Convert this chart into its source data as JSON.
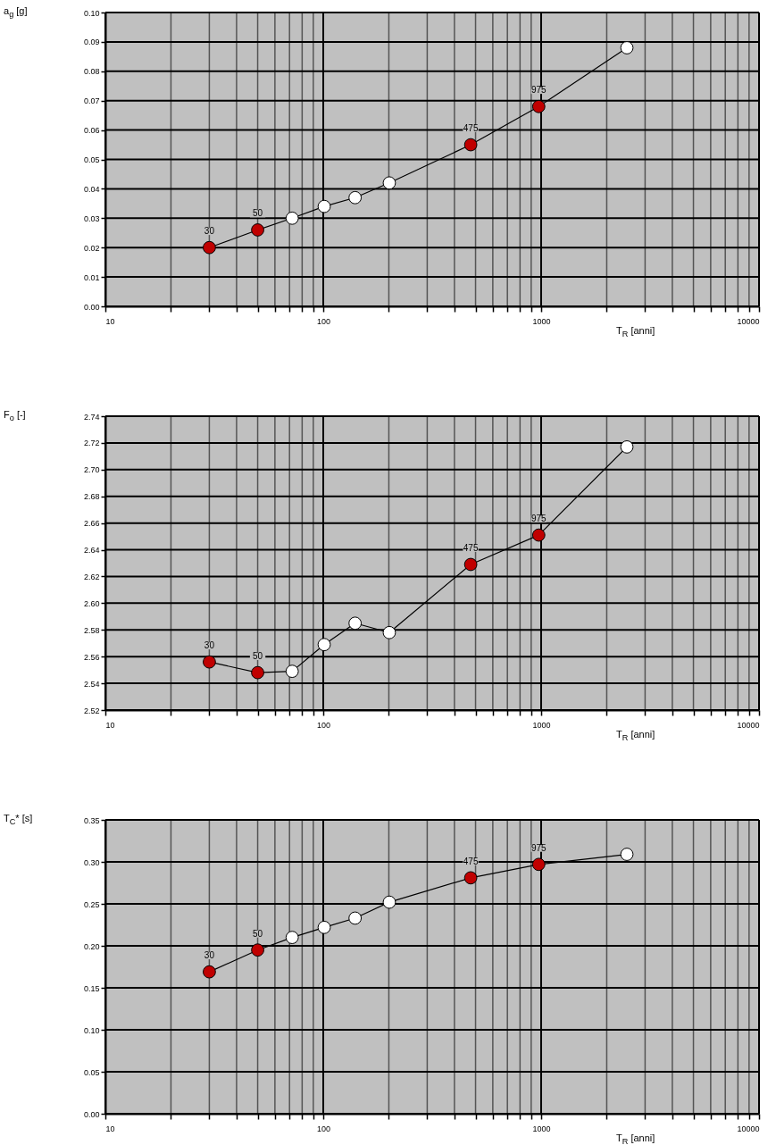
{
  "chart_data": [
    {
      "type": "line",
      "ylabel": "a$_{g}$ [g]",
      "xlabel": "T$_{R}$ [anni]",
      "log": "x",
      "grid": true,
      "xlim": [
        10,
        10000
      ],
      "annotations": [
        {
          "text": "30",
          "x": 30,
          "y": 0.02
        },
        {
          "text": "50",
          "x": 50,
          "y": 0.026
        },
        {
          "text": "475",
          "x": 475,
          "y": 0.055
        },
        {
          "text": "975",
          "x": 975,
          "y": 0.068
        }
      ],
      "xticks": [
        10,
        {
          "value": 20,
          "label": null
        },
        {
          "value": 30,
          "label": null
        },
        {
          "value": 40,
          "label": null
        },
        {
          "value": 50,
          "label": null
        },
        {
          "value": 60,
          "label": null
        },
        {
          "value": 70,
          "label": null
        },
        {
          "value": 80,
          "label": null
        },
        {
          "value": 90,
          "label": null
        },
        100,
        {
          "value": 200,
          "label": null
        },
        {
          "value": 300,
          "label": null
        },
        {
          "value": 400,
          "label": null
        },
        {
          "value": 500,
          "label": null
        },
        {
          "value": 600,
          "label": null
        },
        {
          "value": 700,
          "label": null
        },
        {
          "value": 800,
          "label": null
        },
        {
          "value": 900,
          "label": null
        },
        1000,
        {
          "value": 2000,
          "label": null
        },
        {
          "value": 3000,
          "label": null
        },
        {
          "value": 4000,
          "label": null
        },
        {
          "value": 5000,
          "label": null
        },
        {
          "value": 6000,
          "label": null
        },
        {
          "value": 7000,
          "label": null
        },
        {
          "value": 8000,
          "label": null
        },
        {
          "value": 9000,
          "label": null
        },
        10000
      ],
      "ylim": [
        0,
        0.1
      ],
      "yticks": [
        {
          "value": 0,
          "label": "0.00"
        },
        0.01,
        0.02,
        0.03,
        0.04,
        0.05,
        0.06,
        0.07,
        0.08,
        0.09,
        {
          "value": 0.1,
          "label": "0.10"
        }
      ],
      "series": [
        {
          "type": "line",
          "color": "#000000",
          "marker": "circle",
          "line_style": "solid",
          "x": [
            30,
            50,
            72,
            101,
            140,
            201,
            475,
            975,
            2475
          ],
          "values": [
            0.02,
            0.026,
            0.03,
            0.034,
            0.037,
            0.042,
            0.055,
            0.068,
            0.088
          ],
          "colors": [
            "#c00000",
            "#c00000",
            "#ffffff",
            "#ffffff",
            "#ffffff",
            "#ffffff",
            "#c00000",
            "#c00000",
            "#ffffff"
          ]
        }
      ]
    },
    {
      "type": "line",
      "ylabel": "F$_{o}$ [-]",
      "xlabel": "T$_{R}$ [anni]",
      "log": "x",
      "grid": true,
      "xlim": [
        10,
        10000
      ],
      "annotations": [
        {
          "text": "30",
          "x": 30,
          "y": 2.556
        },
        {
          "text": "50",
          "x": 50,
          "y": 2.548
        },
        {
          "text": "475",
          "x": 475,
          "y": 2.629
        },
        {
          "text": "975",
          "x": 975,
          "y": 2.651
        }
      ],
      "xticks": [
        10,
        {
          "value": 20,
          "label": null
        },
        {
          "value": 30,
          "label": null
        },
        {
          "value": 40,
          "label": null
        },
        {
          "value": 50,
          "label": null
        },
        {
          "value": 60,
          "label": null
        },
        {
          "value": 70,
          "label": null
        },
        {
          "value": 80,
          "label": null
        },
        {
          "value": 90,
          "label": null
        },
        100,
        {
          "value": 200,
          "label": null
        },
        {
          "value": 300,
          "label": null
        },
        {
          "value": 400,
          "label": null
        },
        {
          "value": 500,
          "label": null
        },
        {
          "value": 600,
          "label": null
        },
        {
          "value": 700,
          "label": null
        },
        {
          "value": 800,
          "label": null
        },
        {
          "value": 900,
          "label": null
        },
        1000,
        {
          "value": 2000,
          "label": null
        },
        {
          "value": 3000,
          "label": null
        },
        {
          "value": 4000,
          "label": null
        },
        {
          "value": 5000,
          "label": null
        },
        {
          "value": 6000,
          "label": null
        },
        {
          "value": 7000,
          "label": null
        },
        {
          "value": 8000,
          "label": null
        },
        {
          "value": 9000,
          "label": null
        },
        10000
      ],
      "ylim": [
        2.52,
        2.74
      ],
      "yticks": [
        2.52,
        2.54,
        2.56,
        2.58,
        {
          "value": 2.6,
          "label": "2.60"
        },
        2.62,
        2.64,
        2.66,
        2.68,
        {
          "value": 2.7,
          "label": "2.70"
        },
        2.72,
        2.74
      ],
      "series": [
        {
          "type": "line",
          "color": "#000000",
          "marker": "circle",
          "line_style": "solid",
          "x": [
            30,
            50,
            72,
            101,
            140,
            201,
            475,
            975,
            2475
          ],
          "values": [
            2.556,
            2.548,
            2.549,
            2.569,
            2.585,
            2.578,
            2.629,
            2.651,
            2.717
          ],
          "colors": [
            "#c00000",
            "#c00000",
            "#ffffff",
            "#ffffff",
            "#ffffff",
            "#ffffff",
            "#c00000",
            "#c00000",
            "#ffffff"
          ]
        }
      ]
    },
    {
      "type": "line",
      "ylabel": "T$_{C}$* [s]",
      "xlabel": "T$_{R}$ [anni]",
      "log": "x",
      "grid": true,
      "xlim": [
        10,
        10000
      ],
      "annotations": [
        {
          "text": "30",
          "x": 30,
          "y": 0.169
        },
        {
          "text": "50",
          "x": 50,
          "y": 0.195
        },
        {
          "text": "475",
          "x": 475,
          "y": 0.281
        },
        {
          "text": "975",
          "x": 975,
          "y": 0.297
        }
      ],
      "xticks": [
        10,
        {
          "value": 20,
          "label": null
        },
        {
          "value": 30,
          "label": null
        },
        {
          "value": 40,
          "label": null
        },
        {
          "value": 50,
          "label": null
        },
        {
          "value": 60,
          "label": null
        },
        {
          "value": 70,
          "label": null
        },
        {
          "value": 80,
          "label": null
        },
        {
          "value": 90,
          "label": null
        },
        100,
        {
          "value": 200,
          "label": null
        },
        {
          "value": 300,
          "label": null
        },
        {
          "value": 400,
          "label": null
        },
        {
          "value": 500,
          "label": null
        },
        {
          "value": 600,
          "label": null
        },
        {
          "value": 700,
          "label": null
        },
        {
          "value": 800,
          "label": null
        },
        {
          "value": 900,
          "label": null
        },
        1000,
        {
          "value": 2000,
          "label": null
        },
        {
          "value": 3000,
          "label": null
        },
        {
          "value": 4000,
          "label": null
        },
        {
          "value": 5000,
          "label": null
        },
        {
          "value": 6000,
          "label": null
        },
        {
          "value": 7000,
          "label": null
        },
        {
          "value": 8000,
          "label": null
        },
        {
          "value": 9000,
          "label": null
        },
        10000
      ],
      "ylim": [
        0,
        0.35
      ],
      "yticks": [
        {
          "value": 0,
          "label": "0.00"
        },
        0.05,
        {
          "value": 0.1,
          "label": "0.10"
        },
        0.15,
        {
          "value": 0.2,
          "label": "0.20"
        },
        0.25,
        {
          "value": 0.3,
          "label": "0.30"
        },
        0.35
      ],
      "series": [
        {
          "type": "line",
          "color": "#000000",
          "marker": "circle",
          "line_style": "solid",
          "x": [
            30,
            50,
            72,
            101,
            140,
            201,
            475,
            975,
            2475
          ],
          "values": [
            0.169,
            0.195,
            0.21,
            0.222,
            0.233,
            0.252,
            0.281,
            0.297,
            0.309
          ],
          "colors": [
            "#c00000",
            "#c00000",
            "#ffffff",
            "#ffffff",
            "#ffffff",
            "#ffffff",
            "#c00000",
            "#c00000",
            "#ffffff"
          ]
        }
      ]
    }
  ]
}
